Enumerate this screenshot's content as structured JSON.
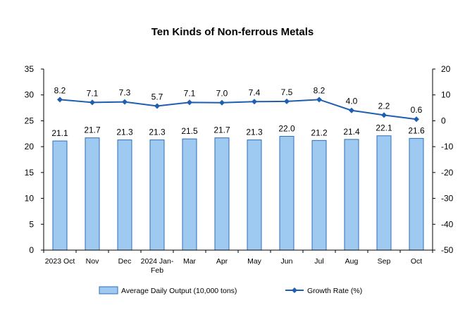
{
  "chart_data": {
    "type": "bar+line",
    "title": "Ten Kinds of Non-ferrous Metals",
    "categories": [
      "2023 Oct",
      "Nov",
      "Dec",
      "2024 Jan-Feb",
      "Mar",
      "Apr",
      "May",
      "Jun",
      "Jul",
      "Aug",
      "Sep",
      "Oct"
    ],
    "series": [
      {
        "name": "Average Daily Output (10,000 tons)",
        "type": "bar",
        "axis": "left",
        "color": "#9ec9f0",
        "edge_color": "#2f6fb5",
        "values": [
          21.1,
          21.7,
          21.3,
          21.3,
          21.5,
          21.7,
          21.3,
          22.0,
          21.2,
          21.4,
          22.1,
          21.6
        ],
        "labels": [
          "21.1",
          "21.7",
          "21.3",
          "21.3",
          "21.5",
          "21.7",
          "21.3",
          "22.0",
          "21.2",
          "21.4",
          "22.1",
          "21.6"
        ]
      },
      {
        "name": "Growth Rate (%)",
        "type": "line",
        "axis": "right",
        "color": "#1f5fb0",
        "values": [
          8.2,
          7.1,
          7.3,
          5.7,
          7.1,
          7.0,
          7.4,
          7.5,
          8.2,
          4.0,
          2.2,
          0.6
        ],
        "labels": [
          "8.2",
          "7.1",
          "7.3",
          "5.7",
          "7.1",
          "7.0",
          "7.4",
          "7.5",
          "8.2",
          "4.0",
          "2.2",
          "0.6"
        ]
      }
    ],
    "y_left": {
      "min": 0,
      "max": 35,
      "ticks": [
        "35",
        "30",
        "25",
        "20",
        "15",
        "10",
        "5",
        "0"
      ]
    },
    "y_right": {
      "min": -50,
      "max": 20,
      "ticks": [
        "20",
        "10",
        "0",
        "-10",
        "-20",
        "-30",
        "-40",
        "-50"
      ]
    },
    "legend": {
      "position": "bottom"
    },
    "grid": false
  }
}
